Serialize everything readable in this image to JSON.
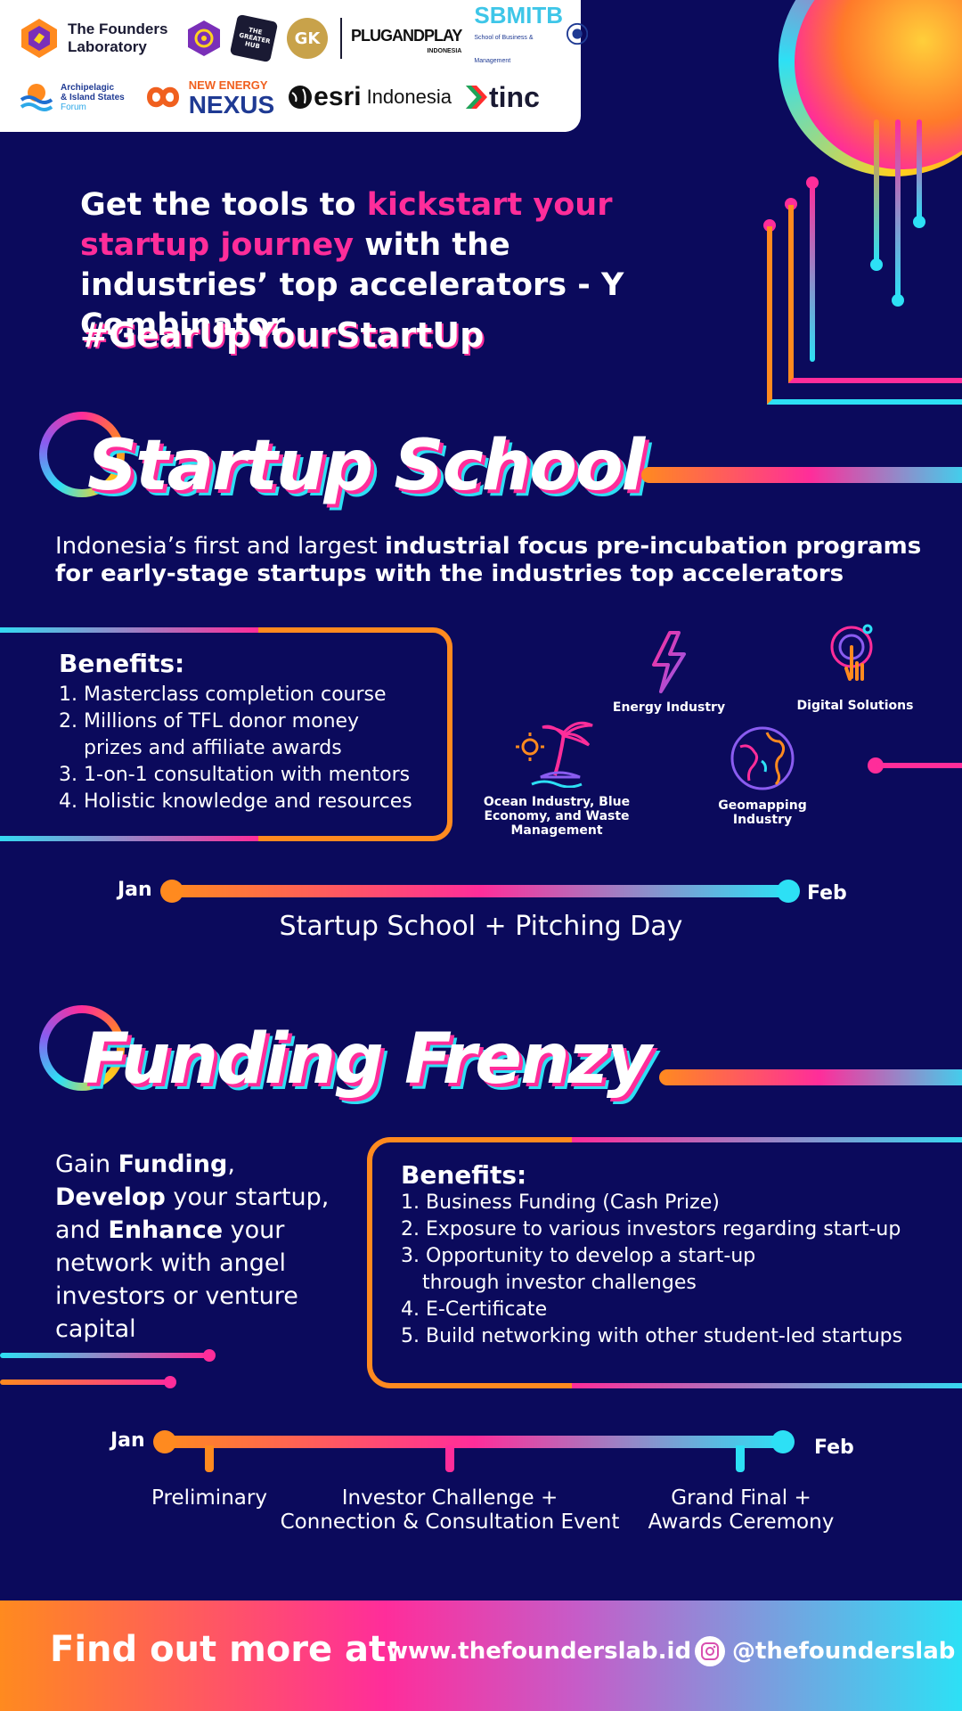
{
  "logos": {
    "founders_lab": "The Founders Laboratory",
    "gk": "GK",
    "greater_hub": "THE GREATER HUB",
    "plug_and_play": "PLUGANDPLAY",
    "plug_and_play_sub": "INDONESIA",
    "sbm_itb": "SBMITB",
    "sbm_itb_sub": "School of Business & Management",
    "archipelagic_line1": "Archipelagic",
    "archipelagic_line2": "& Island States",
    "archipelagic_line3": "Forum",
    "new_energy": "NEW ENERGY",
    "nexus": "NEXUS",
    "esri": "esri",
    "esri_indonesia": "Indonesia",
    "tinc": "tinc"
  },
  "headline": {
    "part1": "Get the tools to ",
    "highlight": "kickstart your startup journey",
    "part2": " with the industries’ top accelerators - Y Combinator",
    "hashtag": "#GearUpYourStartUp"
  },
  "startup_school": {
    "title": "Startup School",
    "intro_plain": "Indonesia’s first and largest ",
    "intro_bold": "industrial focus pre-incubation programs for early-stage startups with the industries top accelerators",
    "benefits_title": "Benefits:",
    "benefits": [
      "1. Masterclass completion course",
      "2. Millions of TFL donor money",
      "prizes and affiliate awards",
      "3. 1-on-1 consultation with mentors",
      "4. Holistic knowledge and resources"
    ],
    "industries": {
      "energy": "Energy Industry",
      "digital": "Digital Solutions",
      "ocean": "Ocean Industry, Blue Economy, and Waste Management",
      "geomapping": "Geomapping Industry"
    },
    "timeline": {
      "start": "Jan",
      "end": "Feb",
      "caption": "Startup School + Pitching Day"
    }
  },
  "funding_frenzy": {
    "title": "Funding Frenzy",
    "desc": {
      "w1": "Gain ",
      "b1": "Funding",
      "w2": ", ",
      "b2": "Develop",
      "w3": " your startup, and ",
      "b3": "Enhance",
      "w4": " your network with angel investors or venture capital"
    },
    "benefits_title": "Benefits:",
    "benefits": [
      "1. Business Funding (Cash Prize)",
      "2. Exposure to various investors regarding start-up",
      "3. Opportunity to develop a start-up",
      "through investor challenges",
      "4. E-Certificate",
      "5. Build networking with other student-led startups"
    ],
    "timeline": {
      "start": "Jan",
      "end": "Feb",
      "step1": "Preliminary",
      "step2_line1": "Investor Challenge +",
      "step2_line2": "Connection & Consultation Event",
      "step3_line1": "Grand Final +",
      "step3_line2": "Awards Ceremony"
    }
  },
  "footer": {
    "label": "Find out more at:",
    "url": "www.thefounderslab.id",
    "handle": "@thefounderslab"
  },
  "colors": {
    "background": "#0b0a5c",
    "pink": "#ff2d9a",
    "orange": "#ff8a1f",
    "cyan": "#2de0f5"
  }
}
